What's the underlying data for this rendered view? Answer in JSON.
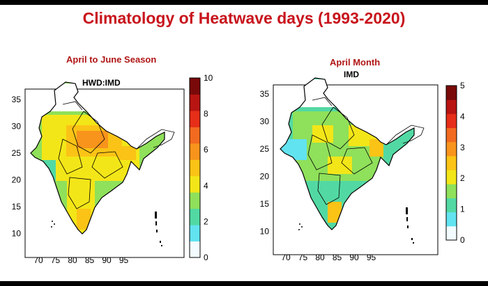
{
  "title": "Climatology of Heatwave days (1993-2020)",
  "panels": [
    {
      "heading": "April to June Season",
      "label": "HWD:IMD",
      "x_ticks": [
        "70",
        "75",
        "80",
        "85",
        "90",
        "95"
      ],
      "y_ticks": [
        "35",
        "30",
        "25",
        "20",
        "15",
        "10"
      ],
      "colorbar_ticks": [
        "10",
        "8",
        "6",
        "4",
        "2",
        "0"
      ],
      "colorbar_range": [
        0,
        10
      ]
    },
    {
      "heading": "April Month",
      "label": "IMD",
      "x_ticks": [
        "70",
        "75",
        "80",
        "85",
        "90",
        "95"
      ],
      "y_ticks": [
        "35",
        "30",
        "25",
        "20",
        "15",
        "10"
      ],
      "colorbar_ticks": [
        "5",
        "4",
        "3",
        "2",
        "1",
        "0"
      ],
      "colorbar_range": [
        0,
        5
      ]
    }
  ],
  "colors": {
    "title": "#c8141c",
    "heading": "#b01515",
    "scale": [
      "#f2fbff",
      "#62e3f0",
      "#52d9a3",
      "#8fe05a",
      "#f3e618",
      "#fbc316",
      "#f8941c",
      "#f26a1f",
      "#e62e18",
      "#b81512",
      "#7a0909"
    ]
  }
}
